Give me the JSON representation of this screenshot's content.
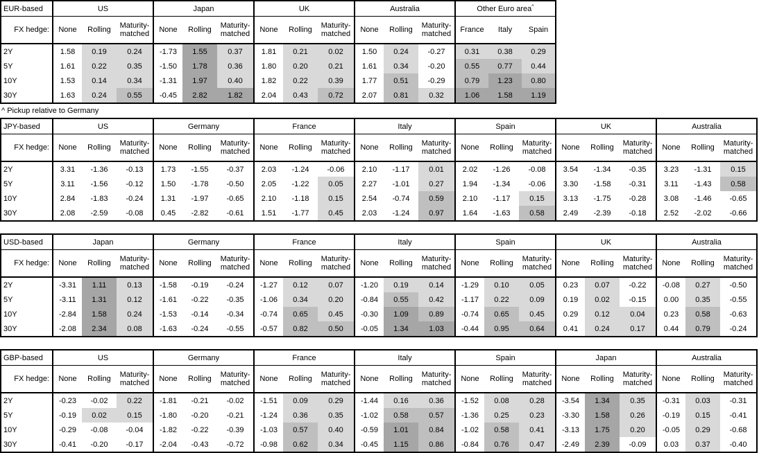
{
  "colors": {
    "background": "#ffffff",
    "border": "#000000",
    "shade_light": "#d9d9d9",
    "shade_mid": "#bfbfbf",
    "shade_dark": "#a6a6a6"
  },
  "footnote": "^ Pickup relative to Germany",
  "shared": {
    "fx_hedge_label": "FX hedge:",
    "tenors": [
      "2Y",
      "5Y",
      "10Y",
      "30Y"
    ],
    "hedge_cols": [
      "None",
      "Rolling",
      "Maturity-matched"
    ]
  },
  "tables": [
    {
      "base": "EUR-based",
      "groups": [
        {
          "name": "US",
          "rows": [
            [
              1.58,
              0.19,
              0.24
            ],
            [
              1.61,
              0.22,
              0.35
            ],
            [
              1.53,
              0.14,
              0.34
            ],
            [
              1.63,
              0.24,
              0.55
            ]
          ]
        },
        {
          "name": "Japan",
          "rows": [
            [
              -1.73,
              1.55,
              0.37
            ],
            [
              -1.5,
              1.78,
              0.36
            ],
            [
              -1.31,
              1.97,
              0.4
            ],
            [
              -0.45,
              2.82,
              1.82
            ]
          ]
        },
        {
          "name": "UK",
          "rows": [
            [
              1.81,
              0.21,
              0.02
            ],
            [
              1.8,
              0.2,
              0.21
            ],
            [
              1.82,
              0.22,
              0.39
            ],
            [
              2.04,
              0.43,
              0.72
            ]
          ]
        },
        {
          "name": "Australia",
          "rows": [
            [
              1.5,
              0.24,
              -0.27
            ],
            [
              1.61,
              0.34,
              -0.2
            ],
            [
              1.77,
              0.51,
              -0.29
            ],
            [
              2.07,
              0.81,
              0.32
            ]
          ]
        },
        {
          "name": "Other Euro area",
          "marker": "^",
          "cols": [
            "France",
            "Italy",
            "Spain"
          ],
          "shade_all": true,
          "rows": [
            [
              0.31,
              0.38,
              0.29
            ],
            [
              0.55,
              0.77,
              0.44
            ],
            [
              0.79,
              1.23,
              0.8
            ],
            [
              1.06,
              1.58,
              1.19
            ]
          ]
        }
      ]
    },
    {
      "base": "JPY-based",
      "groups": [
        {
          "name": "US",
          "rows": [
            [
              3.31,
              -1.36,
              -0.13
            ],
            [
              3.11,
              -1.56,
              -0.12
            ],
            [
              2.84,
              -1.83,
              -0.24
            ],
            [
              2.08,
              -2.59,
              -0.08
            ]
          ]
        },
        {
          "name": "Germany",
          "rows": [
            [
              1.73,
              -1.55,
              -0.37
            ],
            [
              1.5,
              -1.78,
              -0.5
            ],
            [
              1.31,
              -1.97,
              -0.65
            ],
            [
              0.45,
              -2.82,
              -0.61
            ]
          ]
        },
        {
          "name": "France",
          "rows": [
            [
              2.03,
              -1.24,
              -0.06
            ],
            [
              2.05,
              -1.22,
              0.05
            ],
            [
              2.1,
              -1.18,
              0.15
            ],
            [
              1.51,
              -1.77,
              0.45
            ]
          ]
        },
        {
          "name": "Italy",
          "rows": [
            [
              2.1,
              -1.17,
              0.01
            ],
            [
              2.27,
              -1.01,
              0.27
            ],
            [
              2.54,
              -0.74,
              0.59
            ],
            [
              2.03,
              -1.24,
              0.97
            ]
          ]
        },
        {
          "name": "Spain",
          "rows": [
            [
              2.02,
              -1.26,
              -0.08
            ],
            [
              1.94,
              -1.34,
              -0.06
            ],
            [
              2.1,
              -1.17,
              0.15
            ],
            [
              1.64,
              -1.63,
              0.58
            ]
          ]
        },
        {
          "name": "UK",
          "rows": [
            [
              3.54,
              -1.34,
              -0.35
            ],
            [
              3.3,
              -1.58,
              -0.31
            ],
            [
              3.13,
              -1.75,
              -0.28
            ],
            [
              2.49,
              -2.39,
              -0.18
            ]
          ]
        },
        {
          "name": "Australia",
          "rows": [
            [
              3.23,
              -1.31,
              0.15
            ],
            [
              3.11,
              -1.43,
              0.58
            ],
            [
              3.08,
              -1.46,
              -0.65
            ],
            [
              2.52,
              -2.02,
              -0.66
            ]
          ]
        }
      ]
    },
    {
      "base": "USD-based",
      "groups": [
        {
          "name": "Japan",
          "rows": [
            [
              -3.31,
              1.11,
              0.13
            ],
            [
              -3.11,
              1.31,
              0.12
            ],
            [
              -2.84,
              1.58,
              0.24
            ],
            [
              -2.08,
              2.34,
              0.08
            ]
          ]
        },
        {
          "name": "Germany",
          "rows": [
            [
              -1.58,
              -0.19,
              -0.24
            ],
            [
              -1.61,
              -0.22,
              -0.35
            ],
            [
              -1.53,
              -0.14,
              -0.34
            ],
            [
              -1.63,
              -0.24,
              -0.55
            ]
          ]
        },
        {
          "name": "France",
          "rows": [
            [
              -1.27,
              0.12,
              0.07
            ],
            [
              -1.06,
              0.34,
              0.2
            ],
            [
              -0.74,
              0.65,
              0.45
            ],
            [
              -0.57,
              0.82,
              0.5
            ]
          ]
        },
        {
          "name": "Italy",
          "rows": [
            [
              -1.2,
              0.19,
              0.14
            ],
            [
              -0.84,
              0.55,
              0.42
            ],
            [
              -0.3,
              1.09,
              0.89
            ],
            [
              -0.05,
              1.34,
              1.03
            ]
          ]
        },
        {
          "name": "Spain",
          "rows": [
            [
              -1.29,
              0.1,
              0.05
            ],
            [
              -1.17,
              0.22,
              0.09
            ],
            [
              -0.74,
              0.65,
              0.45
            ],
            [
              -0.44,
              0.95,
              0.64
            ]
          ]
        },
        {
          "name": "UK",
          "rows": [
            [
              0.23,
              0.07,
              -0.22
            ],
            [
              0.19,
              0.02,
              -0.15
            ],
            [
              0.29,
              0.12,
              0.04
            ],
            [
              0.41,
              0.24,
              0.17
            ]
          ]
        },
        {
          "name": "Australia",
          "rows": [
            [
              -0.08,
              0.27,
              -0.5
            ],
            [
              0.0,
              0.35,
              -0.55
            ],
            [
              0.23,
              0.58,
              -0.63
            ],
            [
              0.44,
              0.79,
              -0.24
            ]
          ]
        }
      ]
    },
    {
      "base": "GBP-based",
      "groups": [
        {
          "name": "US",
          "rows": [
            [
              -0.23,
              -0.02,
              0.22
            ],
            [
              -0.19,
              0.02,
              0.15
            ],
            [
              -0.29,
              -0.08,
              -0.04
            ],
            [
              -0.41,
              -0.2,
              -0.17
            ]
          ]
        },
        {
          "name": "Germany",
          "rows": [
            [
              -1.81,
              -0.21,
              -0.02
            ],
            [
              -1.8,
              -0.2,
              -0.21
            ],
            [
              -1.82,
              -0.22,
              -0.39
            ],
            [
              -2.04,
              -0.43,
              -0.72
            ]
          ]
        },
        {
          "name": "France",
          "rows": [
            [
              -1.51,
              0.09,
              0.29
            ],
            [
              -1.24,
              0.36,
              0.35
            ],
            [
              -1.03,
              0.57,
              0.4
            ],
            [
              -0.98,
              0.62,
              0.34
            ]
          ]
        },
        {
          "name": "Italy",
          "rows": [
            [
              -1.44,
              0.16,
              0.36
            ],
            [
              -1.02,
              0.58,
              0.57
            ],
            [
              -0.59,
              1.01,
              0.84
            ],
            [
              -0.45,
              1.15,
              0.86
            ]
          ]
        },
        {
          "name": "Spain",
          "rows": [
            [
              -1.52,
              0.08,
              0.28
            ],
            [
              -1.36,
              0.25,
              0.23
            ],
            [
              -1.02,
              0.58,
              0.41
            ],
            [
              -0.84,
              0.76,
              0.47
            ]
          ]
        },
        {
          "name": "Japan",
          "rows": [
            [
              -3.54,
              1.34,
              0.35
            ],
            [
              -3.3,
              1.58,
              0.26
            ],
            [
              -3.13,
              1.75,
              0.2
            ],
            [
              -2.49,
              2.39,
              -0.09
            ]
          ]
        },
        {
          "name": "Australia",
          "rows": [
            [
              -0.31,
              0.03,
              -0.31
            ],
            [
              -0.19,
              0.15,
              -0.41
            ],
            [
              -0.05,
              0.29,
              -0.68
            ],
            [
              0.03,
              0.37,
              -0.4
            ]
          ]
        }
      ]
    }
  ]
}
